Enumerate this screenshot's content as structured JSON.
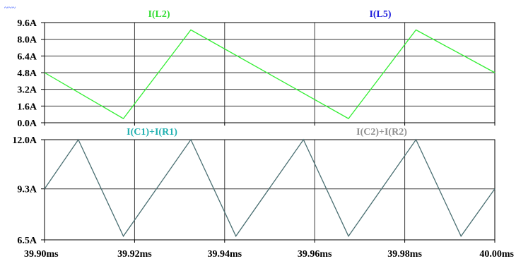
{
  "window": {
    "corner_mark": "~~~"
  },
  "colors": {
    "background": "#ffffff",
    "frame": "#000000",
    "grid": "#3a3a3a",
    "trace_top": "#33ee33",
    "trace_bottom": "#4a6f72",
    "label_l2": "#33dd33",
    "label_l5": "#2020dd",
    "label_c1r1": "#20b0b0",
    "label_c2r2": "#909090",
    "corner_mark": "#3355ff"
  },
  "chart_data": [
    {
      "type": "line",
      "panel": "top",
      "labels": [
        "I(L2)",
        "I(L5)"
      ],
      "y_ticks": [
        "9.6A",
        "8.0A",
        "6.4A",
        "4.8A",
        "3.2A",
        "1.6A",
        "0.0A"
      ],
      "ylim": [
        0.0,
        9.6
      ],
      "xlim": [
        39.9,
        40.0
      ],
      "grid": true,
      "series": [
        {
          "name": "I(L2)",
          "x": [
            39.9,
            39.9175,
            39.9325,
            39.9675,
            39.9825,
            40.0
          ],
          "y": [
            4.8,
            0.4,
            8.9,
            0.4,
            8.9,
            4.8
          ]
        }
      ]
    },
    {
      "type": "line",
      "panel": "bottom",
      "labels": [
        "I(C1)+I(R1)",
        "I(C2)+I(R2)"
      ],
      "y_ticks": [
        "12.0A",
        "9.3A",
        "6.5A"
      ],
      "y_tick_values": [
        12.0,
        9.3,
        6.5
      ],
      "ylim": [
        6.5,
        12.0
      ],
      "xlim": [
        39.9,
        40.0
      ],
      "grid": true,
      "series": [
        {
          "name": "I(C1)+I(R1)",
          "x": [
            39.9,
            39.9075,
            39.9175,
            39.9325,
            39.9425,
            39.9575,
            39.9675,
            39.9825,
            39.9925,
            40.0
          ],
          "y": [
            9.3,
            12.0,
            6.7,
            12.0,
            6.7,
            12.0,
            6.7,
            12.0,
            6.7,
            9.3
          ]
        }
      ]
    }
  ],
  "x_axis": {
    "ticks": [
      39.9,
      39.92,
      39.94,
      39.96,
      39.98,
      40.0
    ],
    "tick_labels": [
      "39.90ms",
      "39.92ms",
      "39.94ms",
      "39.96ms",
      "39.98ms",
      "40.00ms"
    ]
  }
}
